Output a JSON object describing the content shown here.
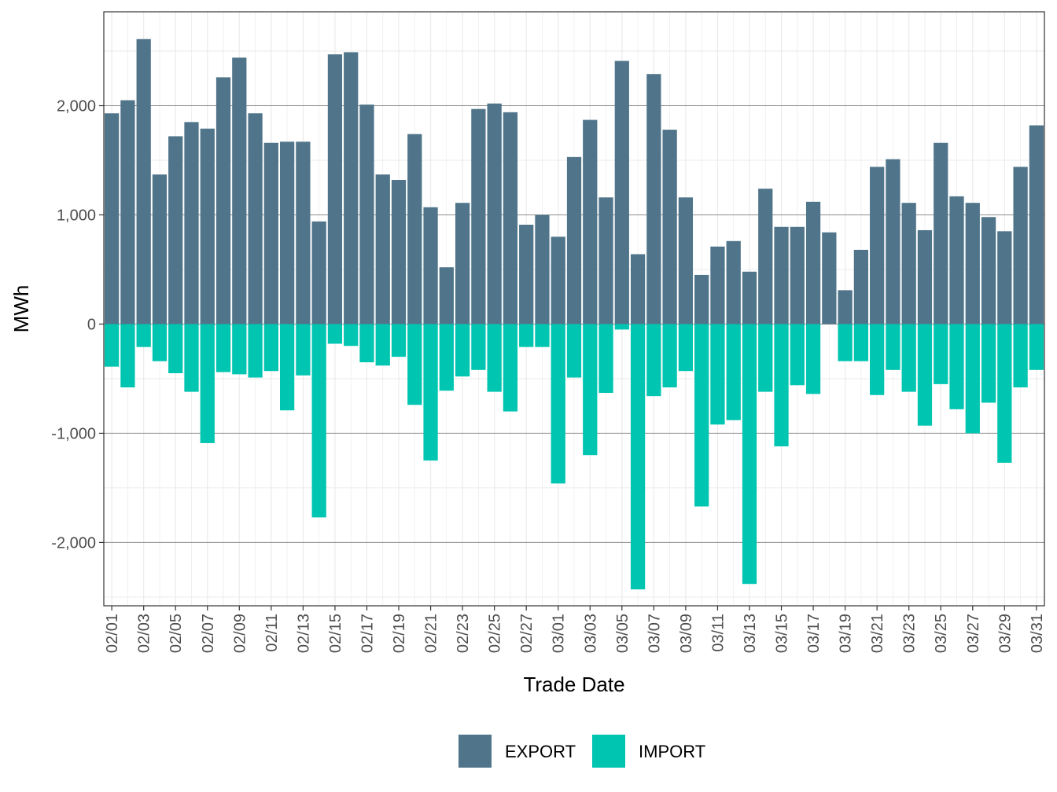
{
  "chart_data": {
    "type": "bar",
    "stacked": "diverging",
    "xlabel": "Trade Date",
    "ylabel": "MWh",
    "ylim": [
      -2580,
      2860
    ],
    "yticks": [
      {
        "value": -2000,
        "label": "-2,000"
      },
      {
        "value": -1000,
        "label": "-1,000"
      },
      {
        "value": 0,
        "label": "0"
      },
      {
        "value": 1000,
        "label": "1,000"
      },
      {
        "value": 2000,
        "label": "2,000"
      }
    ],
    "grid": true,
    "legend_position": "bottom",
    "categories": [
      "02/01",
      "02/02",
      "02/03",
      "02/04",
      "02/05",
      "02/06",
      "02/07",
      "02/08",
      "02/09",
      "02/10",
      "02/11",
      "02/12",
      "02/13",
      "02/14",
      "02/15",
      "02/16",
      "02/17",
      "02/18",
      "02/19",
      "02/20",
      "02/21",
      "02/22",
      "02/23",
      "02/24",
      "02/25",
      "02/26",
      "02/27",
      "02/28",
      "03/01",
      "03/02",
      "03/03",
      "03/04",
      "03/05",
      "03/06",
      "03/07",
      "03/08",
      "03/09",
      "03/10",
      "03/11",
      "03/12",
      "03/13",
      "03/14",
      "03/15",
      "03/16",
      "03/17",
      "03/18",
      "03/19",
      "03/20",
      "03/21",
      "03/22",
      "03/23",
      "03/24",
      "03/25",
      "03/26",
      "03/27",
      "03/28",
      "03/29",
      "03/30",
      "03/31"
    ],
    "tick_labels": [
      "02/01",
      "02/03",
      "02/05",
      "02/07",
      "02/09",
      "02/11",
      "02/13",
      "02/15",
      "02/17",
      "02/19",
      "02/21",
      "02/23",
      "02/25",
      "02/27",
      "03/01",
      "03/03",
      "03/05",
      "03/07",
      "03/09",
      "03/11",
      "03/13",
      "03/15",
      "03/17",
      "03/19",
      "03/21",
      "03/23",
      "03/25",
      "03/27",
      "03/29",
      "03/31"
    ],
    "series": [
      {
        "name": "EXPORT",
        "color": "#50758a",
        "values": [
          1930,
          2050,
          2610,
          1370,
          1720,
          1850,
          1790,
          2260,
          2440,
          1930,
          1660,
          1670,
          1670,
          940,
          2470,
          2490,
          2010,
          1370,
          1320,
          1740,
          1070,
          520,
          1110,
          1970,
          2020,
          1940,
          910,
          1000,
          800,
          1530,
          1870,
          1160,
          2410,
          640,
          2290,
          1780,
          1160,
          450,
          710,
          760,
          480,
          1240,
          890,
          890,
          1120,
          840,
          310,
          680,
          1440,
          1510,
          1110,
          860,
          1660,
          1170,
          1110,
          980,
          850,
          1440,
          1820
        ]
      },
      {
        "name": "IMPORT",
        "color": "#00c5b1",
        "values": [
          -390,
          -580,
          -210,
          -340,
          -450,
          -620,
          -1090,
          -440,
          -460,
          -490,
          -430,
          -790,
          -470,
          -1770,
          -180,
          -200,
          -350,
          -380,
          -300,
          -740,
          -1250,
          -610,
          -480,
          -420,
          -620,
          -800,
          -210,
          -210,
          -1460,
          -490,
          -1200,
          -630,
          -50,
          -2430,
          -660,
          -580,
          -430,
          -1670,
          -920,
          -880,
          -2380,
          -620,
          -1120,
          -560,
          -640,
          0,
          -340,
          -340,
          -650,
          -420,
          -620,
          -930,
          -550,
          -780,
          -1000,
          -720,
          -1270,
          -580,
          -420
        ]
      }
    ]
  }
}
